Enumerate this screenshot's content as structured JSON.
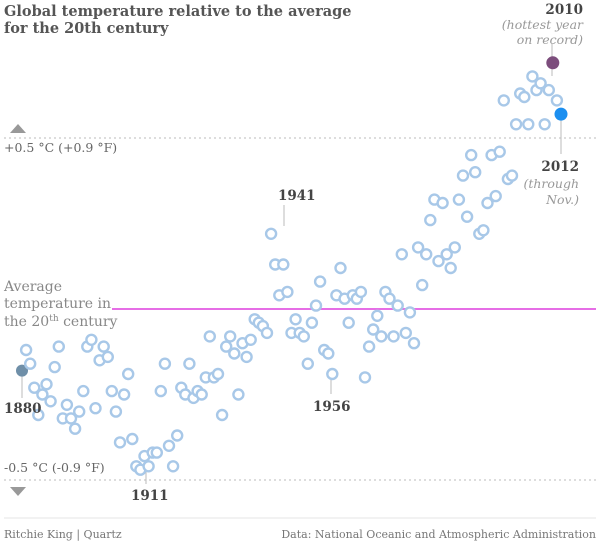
{
  "chart_data": {
    "type": "scatter",
    "title_lines": [
      "Global temperature relative to the average",
      "for the 20th century"
    ],
    "x_range": [
      1880,
      2012
    ],
    "ylim": [
      -0.62,
      0.9
    ],
    "y_unit": "°C",
    "reference_line": {
      "value": 0.0,
      "color": "#e66ee6"
    },
    "gridlines": [
      {
        "value": 0.5,
        "label": "+0.5 °C (+0.9 °F)"
      },
      {
        "value": -0.5,
        "label": "-0.5 °C (-0.9 °F)"
      }
    ],
    "average_label": {
      "line1": "Average",
      "line2": "temperature in",
      "line3_pre": "the 20",
      "line3_sup": "th",
      "line3_post": " century"
    },
    "colors": {
      "points": "#a8c8e8",
      "first_point": "#6f8fa8",
      "record_2010": "#7c4d7c",
      "latest_2012": "#1c8ff0",
      "grid": "#bbbbbb",
      "text": "#555555"
    },
    "x": [
      1880,
      1881,
      1882,
      1883,
      1884,
      1885,
      1886,
      1887,
      1888,
      1889,
      1890,
      1891,
      1892,
      1893,
      1894,
      1895,
      1896,
      1897,
      1898,
      1899,
      1900,
      1901,
      1902,
      1903,
      1904,
      1905,
      1906,
      1907,
      1908,
      1909,
      1910,
      1911,
      1912,
      1913,
      1914,
      1915,
      1916,
      1917,
      1918,
      1919,
      1920,
      1921,
      1922,
      1923,
      1924,
      1925,
      1926,
      1927,
      1928,
      1929,
      1930,
      1931,
      1932,
      1933,
      1934,
      1935,
      1936,
      1937,
      1938,
      1939,
      1940,
      1941,
      1942,
      1943,
      1944,
      1945,
      1946,
      1947,
      1948,
      1949,
      1950,
      1951,
      1952,
      1953,
      1954,
      1955,
      1956,
      1957,
      1958,
      1959,
      1960,
      1961,
      1962,
      1963,
      1964,
      1965,
      1966,
      1967,
      1968,
      1969,
      1970,
      1971,
      1972,
      1973,
      1974,
      1975,
      1976,
      1977,
      1978,
      1979,
      1980,
      1981,
      1982,
      1983,
      1984,
      1985,
      1986,
      1987,
      1988,
      1989,
      1990,
      1991,
      1992,
      1993,
      1994,
      1995,
      1996,
      1997,
      1998,
      1999,
      2000,
      2001,
      2002,
      2003,
      2004,
      2005,
      2006,
      2007,
      2008,
      2009,
      2010,
      2011,
      2012
    ],
    "y": [
      -0.18,
      -0.12,
      -0.16,
      -0.23,
      -0.31,
      -0.25,
      -0.22,
      -0.27,
      -0.17,
      -0.11,
      -0.32,
      -0.28,
      -0.32,
      -0.35,
      -0.3,
      -0.24,
      -0.11,
      -0.09,
      -0.29,
      -0.15,
      -0.11,
      -0.14,
      -0.24,
      -0.3,
      -0.39,
      -0.25,
      -0.19,
      -0.38,
      -0.46,
      -0.47,
      -0.43,
      -0.46,
      -0.42,
      -0.42,
      -0.24,
      -0.16,
      -0.4,
      -0.46,
      -0.37,
      -0.23,
      -0.25,
      -0.16,
      -0.26,
      -0.24,
      -0.25,
      -0.2,
      -0.08,
      -0.2,
      -0.19,
      -0.31,
      -0.11,
      -0.08,
      -0.13,
      -0.25,
      -0.1,
      -0.14,
      -0.09,
      -0.03,
      -0.04,
      -0.05,
      -0.07,
      0.22,
      0.13,
      0.04,
      0.13,
      0.05,
      -0.07,
      -0.03,
      -0.07,
      -0.08,
      -0.16,
      -0.04,
      0.01,
      0.08,
      -0.12,
      -0.13,
      -0.19,
      0.04,
      0.12,
      0.03,
      -0.04,
      0.04,
      0.03,
      0.05,
      -0.2,
      -0.11,
      -0.06,
      -0.02,
      -0.08,
      0.05,
      0.03,
      -0.08,
      0.01,
      0.16,
      -0.07,
      -0.01,
      -0.1,
      0.18,
      0.07,
      0.16,
      0.26,
      0.32,
      0.14,
      0.31,
      0.16,
      0.12,
      0.18,
      0.32,
      0.39,
      0.27,
      0.45,
      0.4,
      0.22,
      0.23,
      0.31,
      0.45,
      0.33,
      0.46,
      0.61,
      0.38,
      0.39,
      0.54,
      0.63,
      0.62,
      0.54,
      0.68,
      0.64,
      0.66,
      0.54,
      0.64,
      0.72,
      0.61,
      0.57
    ],
    "annotations": {
      "y1941": "1941",
      "y1956": "1956",
      "y1911": "1911",
      "y1880": "1880",
      "y2010": "2010",
      "y2010_sub1": "(hottest year",
      "y2010_sub2": "on record)",
      "y2012": "2012",
      "y2012_sub1": "(through",
      "y2012_sub2": "Nov.)"
    },
    "footer_left": "Ritchie King | Quartz",
    "footer_right": "Data: National Oceanic and Atmospheric Administration"
  }
}
